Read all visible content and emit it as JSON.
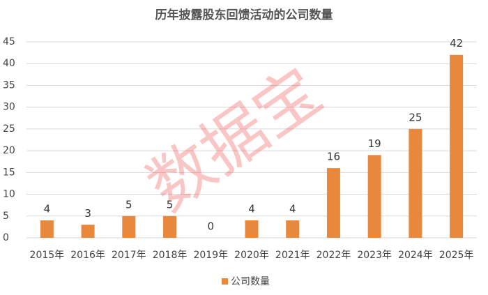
{
  "chart_data": {
    "type": "bar",
    "title": "历年披露股东回馈活动的公司数量",
    "categories": [
      "2015年",
      "2016年",
      "2017年",
      "2018年",
      "2019年",
      "2020年",
      "2021年",
      "2022年",
      "2023年",
      "2024年",
      "2025年"
    ],
    "series": [
      {
        "name": "公司数量",
        "color": "#e8883c",
        "values": [
          4,
          3,
          5,
          5,
          0,
          4,
          4,
          16,
          19,
          25,
          42
        ]
      }
    ],
    "ylim": [
      0,
      45
    ],
    "yticks": [
      0,
      5,
      10,
      15,
      20,
      25,
      30,
      35,
      40,
      45
    ],
    "grid": true,
    "legend": "bottom",
    "watermark": "数据宝"
  }
}
